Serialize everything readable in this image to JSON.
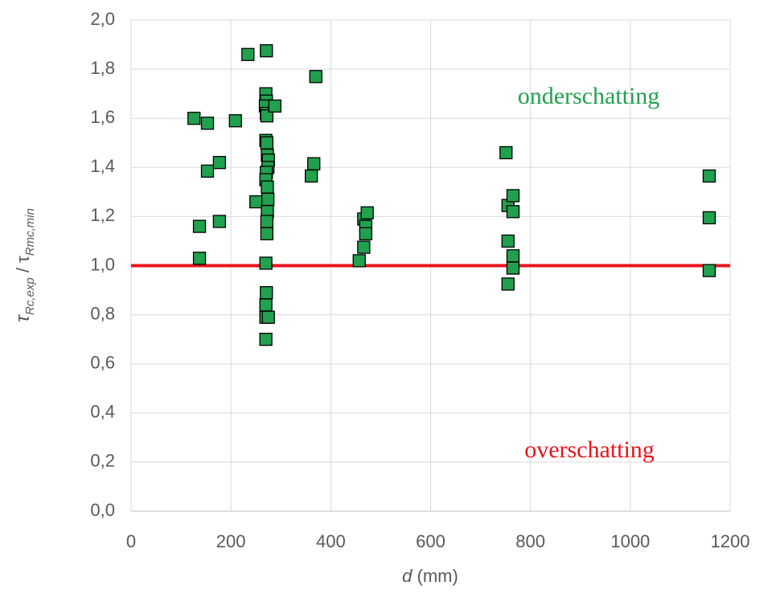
{
  "chart_data": {
    "type": "scatter",
    "x_label_parts": [
      "d",
      " (mm)"
    ],
    "y_label_parts": [
      "τ",
      "Rc,exp",
      " / τ",
      "Rmc,min"
    ],
    "xlim": [
      0,
      1200
    ],
    "xticks": [
      0,
      200,
      400,
      600,
      800,
      1000,
      1200
    ],
    "ylim": [
      0,
      2.0
    ],
    "yticks": [
      {
        "value": 0,
        "label": "0,0"
      },
      {
        "value": 0.2,
        "label": "0,2"
      },
      {
        "value": 0.4,
        "label": "0,4"
      },
      {
        "value": 0.6,
        "label": "0,6"
      },
      {
        "value": 0.8,
        "label": "0,8"
      },
      {
        "value": 1.0,
        "label": "1,0"
      },
      {
        "value": 1.2,
        "label": "1,2"
      },
      {
        "value": 1.4,
        "label": "1,4"
      },
      {
        "value": 1.6,
        "label": "1,6"
      },
      {
        "value": 1.8,
        "label": "1,8"
      },
      {
        "value": 2.0,
        "label": "2,0"
      }
    ],
    "grid": true,
    "color": "#21a04e",
    "x": [
      126,
      153,
      137,
      137,
      153,
      177,
      177,
      209,
      234,
      271,
      250,
      270,
      271,
      269,
      271,
      272,
      270,
      272,
      273,
      275,
      274,
      271,
      270,
      273,
      274,
      273,
      272,
      272,
      270,
      271,
      270,
      270,
      275,
      270,
      288,
      370,
      366,
      361,
      457,
      466,
      473,
      470,
      470,
      466,
      751,
      755,
      755,
      755,
      765,
      765,
      765,
      765,
      1158,
      1158,
      1158
    ],
    "y": [
      1.6,
      1.58,
      1.16,
      1.03,
      1.385,
      1.42,
      1.18,
      1.59,
      1.86,
      1.875,
      1.26,
      1.7,
      1.67,
      1.65,
      1.62,
      1.61,
      1.51,
      1.5,
      1.45,
      1.43,
      1.4,
      1.38,
      1.35,
      1.32,
      1.27,
      1.22,
      1.18,
      1.13,
      1.01,
      0.89,
      0.84,
      0.79,
      0.79,
      0.7,
      1.65,
      1.77,
      1.415,
      1.365,
      1.02,
      1.19,
      1.215,
      1.16,
      1.13,
      1.075,
      1.46,
      1.245,
      1.1,
      0.925,
      1.285,
      1.22,
      1.04,
      0.99,
      1.365,
      1.195,
      0.98
    ],
    "reference_line": {
      "value": 1.0,
      "color": "#e8141b"
    },
    "annotations": [
      {
        "text": "onderschatting",
        "color": "#21a04e"
      },
      {
        "text": "overschatting",
        "color": "#e8141b"
      }
    ]
  }
}
